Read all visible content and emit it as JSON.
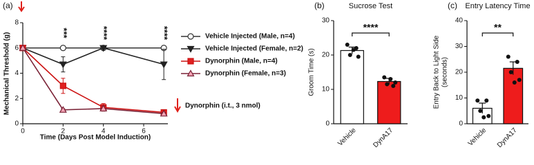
{
  "chart_data": [
    {
      "type": "line",
      "panel_label": "(a)",
      "xlabel": "Time (Days Post Model Induction)",
      "ylabel": "Mechanical Threshold (g)",
      "x": [
        0,
        2,
        4,
        7
      ],
      "xlim": [
        0,
        7.2
      ],
      "xticks": [
        0,
        2,
        4,
        6
      ],
      "ylim": [
        0,
        8
      ],
      "yticks": [
        0,
        2,
        4,
        6,
        8
      ],
      "series": [
        {
          "name": "Vehicle Injected (Male, n=4)",
          "color": "#333333",
          "marker": "circle-open",
          "marker_fill": "#ffffff",
          "values": [
            6,
            6,
            6,
            6
          ],
          "errors": [
            0,
            0.1,
            0.1,
            0.1
          ]
        },
        {
          "name": "Vehicle Injected (Female, n=2)",
          "color": "#222222",
          "marker": "triangle-down",
          "marker_fill": "#222222",
          "values": [
            6,
            4.7,
            6,
            4.7
          ],
          "errors": [
            0,
            0.6,
            0,
            1.2
          ]
        },
        {
          "name": "Dynorphin (Male, n=4)",
          "color": "#cc1111",
          "marker": "square",
          "marker_fill": "#e02020",
          "values": [
            6,
            3,
            1.3,
            0.9
          ],
          "errors": [
            0,
            0.6,
            0.3,
            0.2
          ]
        },
        {
          "name": "Dynorphin (Female, n=3)",
          "color": "#7a2236",
          "marker": "triangle-up",
          "marker_fill": "#f3a3b5",
          "values": [
            6,
            1.1,
            1.2,
            0.8
          ],
          "errors": [
            0,
            0.1,
            0.2,
            0.1
          ]
        }
      ],
      "annotations": [
        {
          "x": 2,
          "text": "***"
        },
        {
          "x": 4,
          "text": "****"
        },
        {
          "x": 7,
          "text": "****"
        }
      ],
      "note": "Dynorphin (i.t., 3 nmol)"
    },
    {
      "type": "bar",
      "panel_label": "(b)",
      "title": "Sucrose Test",
      "ylabel": [
        "Groom Time (s)"
      ],
      "categories": [
        "Vehicle",
        "DynA17"
      ],
      "values": [
        21.3,
        12.3
      ],
      "errors": [
        1.0,
        0.9
      ],
      "colors": [
        "#ffffff",
        "#ee1c1c"
      ],
      "points": [
        [
          23,
          22,
          20,
          19.5,
          21.5
        ],
        [
          13.5,
          11,
          11.5,
          12,
          13
        ]
      ],
      "ylim": [
        0,
        30
      ],
      "yticks": [
        0,
        10,
        20,
        30
      ],
      "significance": "****"
    },
    {
      "type": "bar",
      "panel_label": "(c)",
      "title": "Entry Latency Time",
      "ylabel": [
        "Entry Back to Light Side",
        "(seconds)"
      ],
      "categories": [
        "Vehicle",
        "DynA17"
      ],
      "values": [
        6,
        21.5
      ],
      "errors": [
        2,
        2.5
      ],
      "colors": [
        "#ffffff",
        "#ee1c1c"
      ],
      "points": [
        [
          9,
          9,
          5,
          3,
          2.5
        ],
        [
          26,
          24,
          20,
          17,
          16
        ]
      ],
      "ylim": [
        0,
        40
      ],
      "yticks": [
        0,
        10,
        20,
        30,
        40
      ],
      "significance": "**"
    }
  ]
}
